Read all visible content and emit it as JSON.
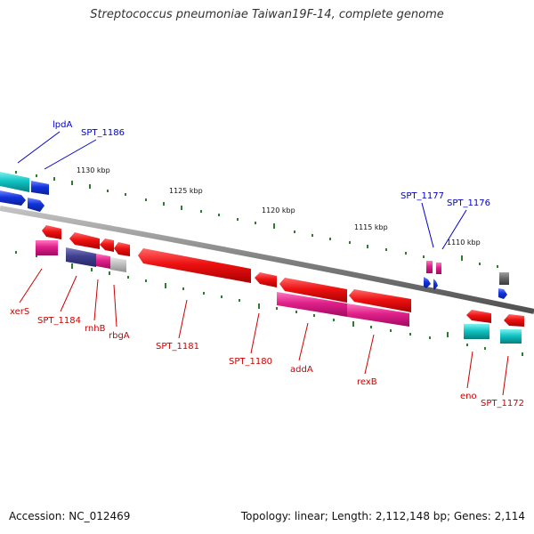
{
  "title": "Streptococcus pneumoniae Taiwan19F-14, complete genome",
  "footer": {
    "accession": "Accession: NC_012469",
    "summary": "Topology: linear; Length: 2,112,148 bp; Genes: 2,114"
  },
  "colors": {
    "backbone": "#808080",
    "tick": "#2e7d2e",
    "label_forward": "#0000cc",
    "label_reverse": "#cc0000",
    "gene_red": "#ee1111",
    "gene_magenta": "#e0208a",
    "gene_cyan": "#11c4c4",
    "gene_blue": "#1133dd",
    "gene_navy": "#3f3f8f",
    "gene_grey": "#bbbbbb",
    "gene_darkgrey": "#666666"
  },
  "scale_labels": [
    {
      "text": "1130 kbp"
    },
    {
      "text": "1125 kbp"
    },
    {
      "text": "1120 kbp"
    },
    {
      "text": "1115 kbp"
    },
    {
      "text": "1110 kbp"
    }
  ],
  "forward_labels": [
    {
      "text": "lpdA"
    },
    {
      "text": "SPT_1186"
    },
    {
      "text": "SPT_1177"
    },
    {
      "text": "SPT_1176"
    }
  ],
  "reverse_labels": [
    {
      "text": "xerS"
    },
    {
      "text": "SPT_1184"
    },
    {
      "text": "rnhB"
    },
    {
      "text": "rbgA"
    },
    {
      "text": "SPT_1181"
    },
    {
      "text": "SPT_1180"
    },
    {
      "text": "addA"
    },
    {
      "text": "rexB"
    },
    {
      "text": "eno"
    },
    {
      "text": "SPT_1172"
    }
  ]
}
